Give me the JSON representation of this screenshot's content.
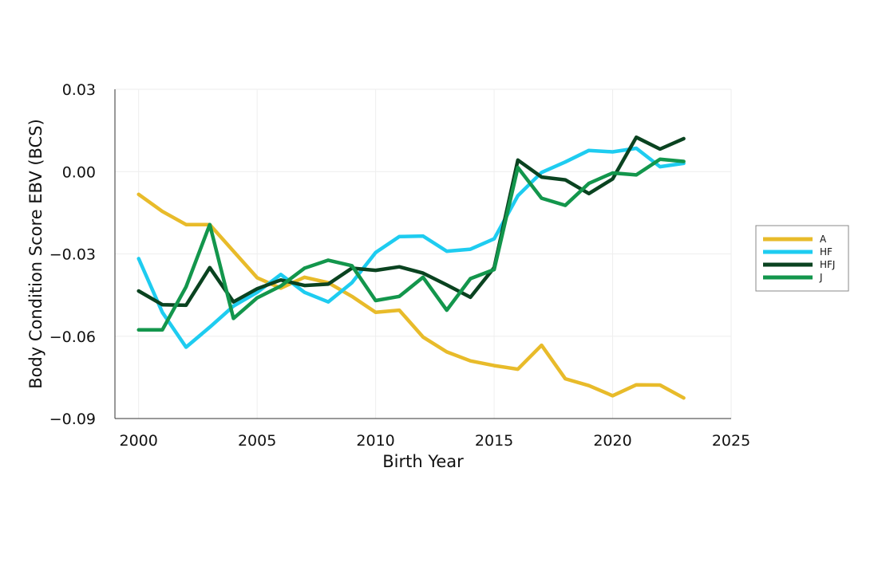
{
  "chart_data": {
    "type": "line",
    "title": "",
    "xlabel": "Birth Year",
    "ylabel": "Body Condition Score EBV (BCS)",
    "xlim": [
      1999,
      2025
    ],
    "ylim": [
      -0.09,
      0.03
    ],
    "xticks": [
      2000,
      2005,
      2010,
      2015,
      2020,
      2025
    ],
    "yticks": [
      0.03,
      0.0,
      -0.03,
      -0.06,
      -0.09
    ],
    "ytick_labels": [
      "0.03",
      "0.00",
      "−0.03",
      "−0.06",
      "−0.09"
    ],
    "grid": true,
    "legend_position": "right",
    "x": [
      2000,
      2001,
      2002,
      2003,
      2004,
      2005,
      2006,
      2007,
      2008,
      2009,
      2010,
      2011,
      2012,
      2013,
      2014,
      2015,
      2016,
      2017,
      2018,
      2019,
      2020,
      2021,
      2022,
      2023
    ],
    "series": [
      {
        "name": "A",
        "color": "#E8BB2A",
        "values": [
          -0.0083,
          -0.0145,
          -0.0193,
          -0.0193,
          -0.029,
          -0.0387,
          -0.0425,
          -0.0385,
          -0.0405,
          -0.0455,
          -0.0513,
          -0.0505,
          -0.0603,
          -0.0657,
          -0.069,
          -0.0707,
          -0.072,
          -0.0633,
          -0.0755,
          -0.078,
          -0.0817,
          -0.0777,
          -0.0778,
          -0.0825
        ]
      },
      {
        "name": "HF",
        "color": "#1ECCF0",
        "values": [
          -0.0317,
          -0.0513,
          -0.064,
          -0.0567,
          -0.049,
          -0.044,
          -0.0375,
          -0.044,
          -0.0475,
          -0.0405,
          -0.0295,
          -0.0237,
          -0.0235,
          -0.029,
          -0.0283,
          -0.0245,
          -0.0088,
          -0.0003,
          0.0035,
          0.0077,
          0.0072,
          0.0085,
          0.0018,
          0.003
        ]
      },
      {
        "name": "HFJ",
        "color": "#0A4320",
        "values": [
          -0.0435,
          -0.0485,
          -0.0487,
          -0.035,
          -0.0475,
          -0.0427,
          -0.0395,
          -0.0415,
          -0.041,
          -0.0352,
          -0.036,
          -0.0347,
          -0.037,
          -0.0413,
          -0.0458,
          -0.035,
          0.0042,
          -0.002,
          -0.003,
          -0.008,
          -0.0027,
          0.0125,
          0.0082,
          0.012
        ]
      },
      {
        "name": "J",
        "color": "#13964C",
        "values": [
          -0.0577,
          -0.0577,
          -0.042,
          -0.0193,
          -0.0535,
          -0.046,
          -0.0417,
          -0.0352,
          -0.0323,
          -0.0343,
          -0.047,
          -0.0455,
          -0.0385,
          -0.0505,
          -0.039,
          -0.0357,
          0.0015,
          -0.0097,
          -0.0123,
          -0.0043,
          -0.0005,
          -0.0012,
          0.0045,
          0.0037
        ]
      }
    ]
  }
}
